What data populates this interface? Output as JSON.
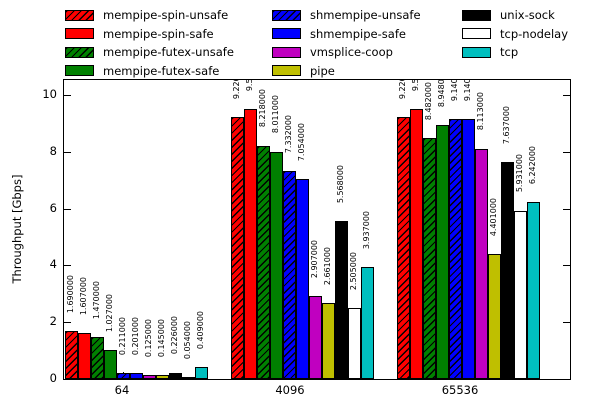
{
  "chart_data": {
    "type": "bar",
    "title": "",
    "xlabel": "",
    "ylabel": "Throughput [Gbps]",
    "categories": [
      "64",
      "4096",
      "65536"
    ],
    "ylim": [
      0,
      10.6
    ],
    "yticks": [
      "0",
      "2",
      "4",
      "6",
      "8",
      "10"
    ],
    "grid": false,
    "legend_position": "top, three frameless columns",
    "bar_label_decimals": 6,
    "hatch_meaning": "diagonal black hatch on 'unsafe' variants",
    "series": [
      {
        "name": "mempipe-spin-unsafe",
        "color": "#ff0000",
        "hatch": true,
        "values": [
          1.69,
          9.22,
          9.22
        ]
      },
      {
        "name": "mempipe-spin-safe",
        "color": "#ff0000",
        "hatch": false,
        "values": [
          1.607,
          9.52,
          9.52
        ]
      },
      {
        "name": "mempipe-futex-unsafe",
        "color": "#008000",
        "hatch": true,
        "values": [
          1.47,
          8.218,
          8.482
        ]
      },
      {
        "name": "mempipe-futex-safe",
        "color": "#008000",
        "hatch": false,
        "values": [
          1.027,
          8.011,
          8.948
        ]
      },
      {
        "name": "shmempipe-unsafe",
        "color": "#0000ff",
        "hatch": true,
        "values": [
          0.211,
          7.332,
          9.14
        ]
      },
      {
        "name": "shmempipe-safe",
        "color": "#0000ff",
        "hatch": false,
        "values": [
          0.201,
          7.054,
          9.14
        ]
      },
      {
        "name": "vmsplice-coop",
        "color": "#c000c0",
        "hatch": false,
        "values": [
          0.125,
          2.907,
          8.113
        ]
      },
      {
        "name": "pipe",
        "color": "#bfbf00",
        "hatch": false,
        "values": [
          0.145,
          2.661,
          4.401
        ]
      },
      {
        "name": "unix-sock",
        "color": "#000000",
        "hatch": false,
        "values": [
          0.226,
          5.568,
          7.637
        ]
      },
      {
        "name": "tcp-nodelay",
        "color": "#ffffff",
        "hatch": false,
        "values": [
          0.054,
          2.505,
          5.931
        ]
      },
      {
        "name": "tcp",
        "color": "#00bfbf",
        "hatch": false,
        "values": [
          0.409,
          3.937,
          6.242
        ]
      }
    ],
    "legend_columns": [
      [
        0,
        1,
        2,
        3
      ],
      [
        4,
        5,
        6,
        7
      ],
      [
        8,
        9,
        10
      ]
    ]
  }
}
